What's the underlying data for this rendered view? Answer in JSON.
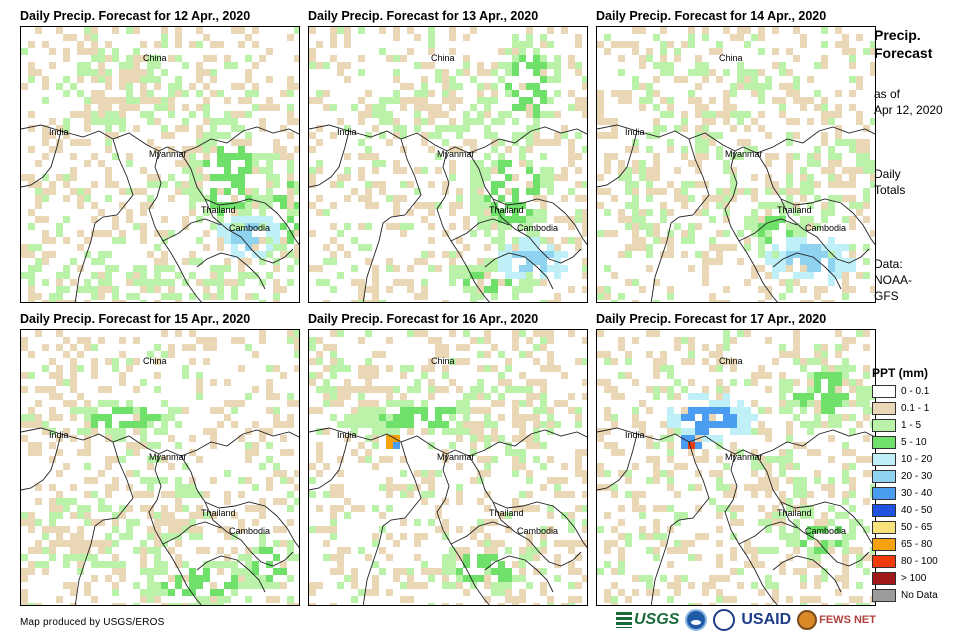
{
  "panels": [
    {
      "title": "Daily Precip. Forecast for 12 Apr., 2020"
    },
    {
      "title": "Daily Precip. Forecast for 13 Apr., 2020"
    },
    {
      "title": "Daily Precip. Forecast for 14 Apr., 2020"
    },
    {
      "title": "Daily Precip. Forecast for 15 Apr., 2020"
    },
    {
      "title": "Daily Precip. Forecast for 16 Apr., 2020"
    },
    {
      "title": "Daily Precip. Forecast for 17 Apr., 2020"
    }
  ],
  "map_labels": {
    "china": "China",
    "india": "India",
    "myanmar": "Myanmar",
    "thailand": "Thailand",
    "cambodia": "Cambodia"
  },
  "sidebar": {
    "title_line1": "Precip.",
    "title_line2": "Forecast",
    "asof_line1": "as of",
    "asof_line2": "Apr 12, 2020",
    "totals_line1": "Daily",
    "totals_line2": "Totals",
    "data_line1": "Data:",
    "data_line2": "NOAA-",
    "data_line3": "GFS"
  },
  "legend": {
    "title": "PPT (mm)",
    "items": [
      {
        "label": "0 - 0.1",
        "color": "#ffffff"
      },
      {
        "label": "0.1 - 1",
        "color": "#ead7b5"
      },
      {
        "label": "1 - 5",
        "color": "#b9f2a8"
      },
      {
        "label": "5 - 10",
        "color": "#6fe06a"
      },
      {
        "label": "10 - 20",
        "color": "#bff0f7"
      },
      {
        "label": "20 - 30",
        "color": "#8fd3f0"
      },
      {
        "label": "30 - 40",
        "color": "#4a9df0"
      },
      {
        "label": "40 - 50",
        "color": "#1f52e0"
      },
      {
        "label": "50 - 65",
        "color": "#f8e37a"
      },
      {
        "label": "65 - 80",
        "color": "#f5a20f"
      },
      {
        "label": "80 - 100",
        "color": "#f03c0c"
      },
      {
        "label": "> 100",
        "color": "#a01a1a"
      },
      {
        "label": "No Data",
        "color": "#9b9b9b"
      }
    ]
  },
  "credit": "Map produced by USGS/EROS",
  "logos": {
    "usgs": "USGS",
    "usaid": "USAID",
    "fews": "FEWS NET"
  }
}
